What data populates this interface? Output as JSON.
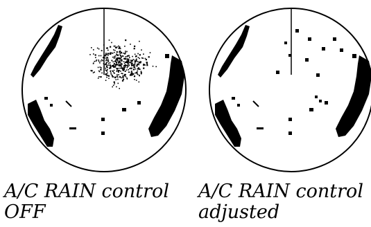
{
  "panels": [
    {
      "id": "off",
      "caption_line1": "A/C RAIN control",
      "caption_line2": "OFF",
      "clutter": "dense"
    },
    {
      "id": "adjusted",
      "caption_line1": "A/C RAIN control",
      "caption_line2": "adjusted",
      "clutter": "sparse"
    }
  ],
  "colors": {
    "ink": "#000000",
    "background": "#ffffff"
  }
}
